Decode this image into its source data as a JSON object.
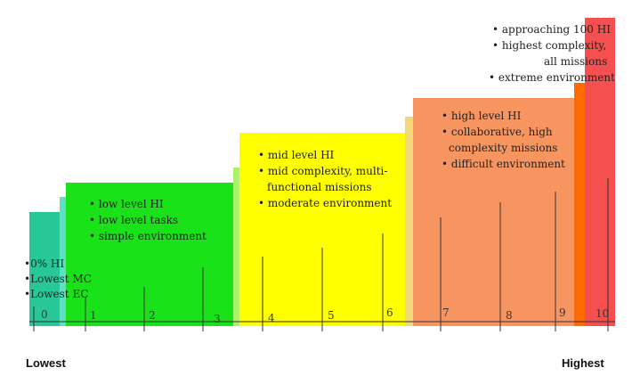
{
  "colors": {
    "teal": "#27c79a",
    "teal_step": "#5fe0c0",
    "green": "#19e219",
    "green_step": "#aef06a",
    "yellow": "#ffff00",
    "yellow_step": "#f2d879",
    "orange": "#f79560",
    "orange_step": "#ff6a00",
    "red": "#f54f4f"
  },
  "scale": {
    "ticks": [
      "0",
      "1",
      "2",
      "3",
      "4",
      "5",
      "6",
      "7",
      "8",
      "9",
      "10"
    ],
    "low_label": "Lowest",
    "high_label": "Highest"
  },
  "blocks": [
    {
      "name": "level-0",
      "lines": [
        "•0% HI",
        "•Lowest MC",
        "•Lowest EC"
      ]
    },
    {
      "name": "low",
      "lines": [
        "• low level HI",
        "• low level tasks",
        "• simple environment"
      ]
    },
    {
      "name": "mid",
      "lines": [
        "• mid level HI",
        "• mid complexity, multi-",
        "functional missions",
        "• moderate environment"
      ]
    },
    {
      "name": "high",
      "lines": [
        "• high level HI",
        "• collaborative, high",
        "complexity missions",
        "• difficult environment"
      ]
    },
    {
      "name": "extreme",
      "lines": [
        "• approaching 100 HI",
        "• highest complexity,",
        "all missions",
        "• extreme environment"
      ]
    }
  ]
}
